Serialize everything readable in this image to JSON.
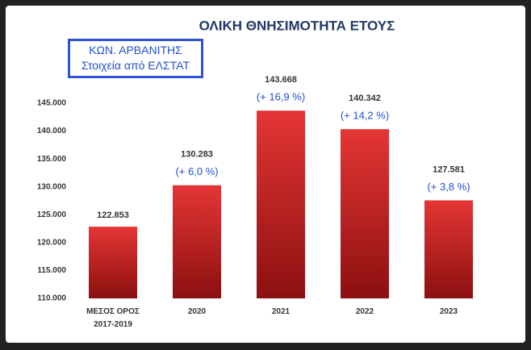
{
  "chart_data": {
    "type": "bar",
    "title": "ΟΛΙΚΗ ΘΝΗΣΙΜΟΤΗΤΑ ΕΤΟΥΣ",
    "source_box": [
      "ΚΩΝ. ΑΡΒΑΝΙΤΗΣ",
      "Στοιχεία από ΕΛΣΤΑΤ"
    ],
    "categories": [
      "ΜΕΣΟΣ ΟΡΟΣ\n2017-2019",
      "2020",
      "2021",
      "2022",
      "2023"
    ],
    "values": [
      122853,
      130283,
      143668,
      140342,
      127581
    ],
    "value_labels": [
      "122.853",
      "130.283",
      "143.668",
      "140.342",
      "127.581"
    ],
    "annotations": [
      null,
      "(+ 6,0 %)",
      "(+ 16,9 %)",
      "(+ 14,2 %)",
      "(+ 3,8 %)"
    ],
    "color": "#d42a2a",
    "annotation_color": "#1f4fd6",
    "ylim": [
      110000,
      150000
    ],
    "yticks": [
      {
        "value": 110000,
        "label": "110.000"
      },
      {
        "value": 115000,
        "label": "115.000"
      },
      {
        "value": 120000,
        "label": "120.000"
      },
      {
        "value": 125000,
        "label": "125.000"
      },
      {
        "value": 130000,
        "label": "130.000"
      },
      {
        "value": 135000,
        "label": "135.000"
      },
      {
        "value": 140000,
        "label": "140.000"
      },
      {
        "value": 145000,
        "label": "145.000"
      }
    ],
    "grid": false
  }
}
